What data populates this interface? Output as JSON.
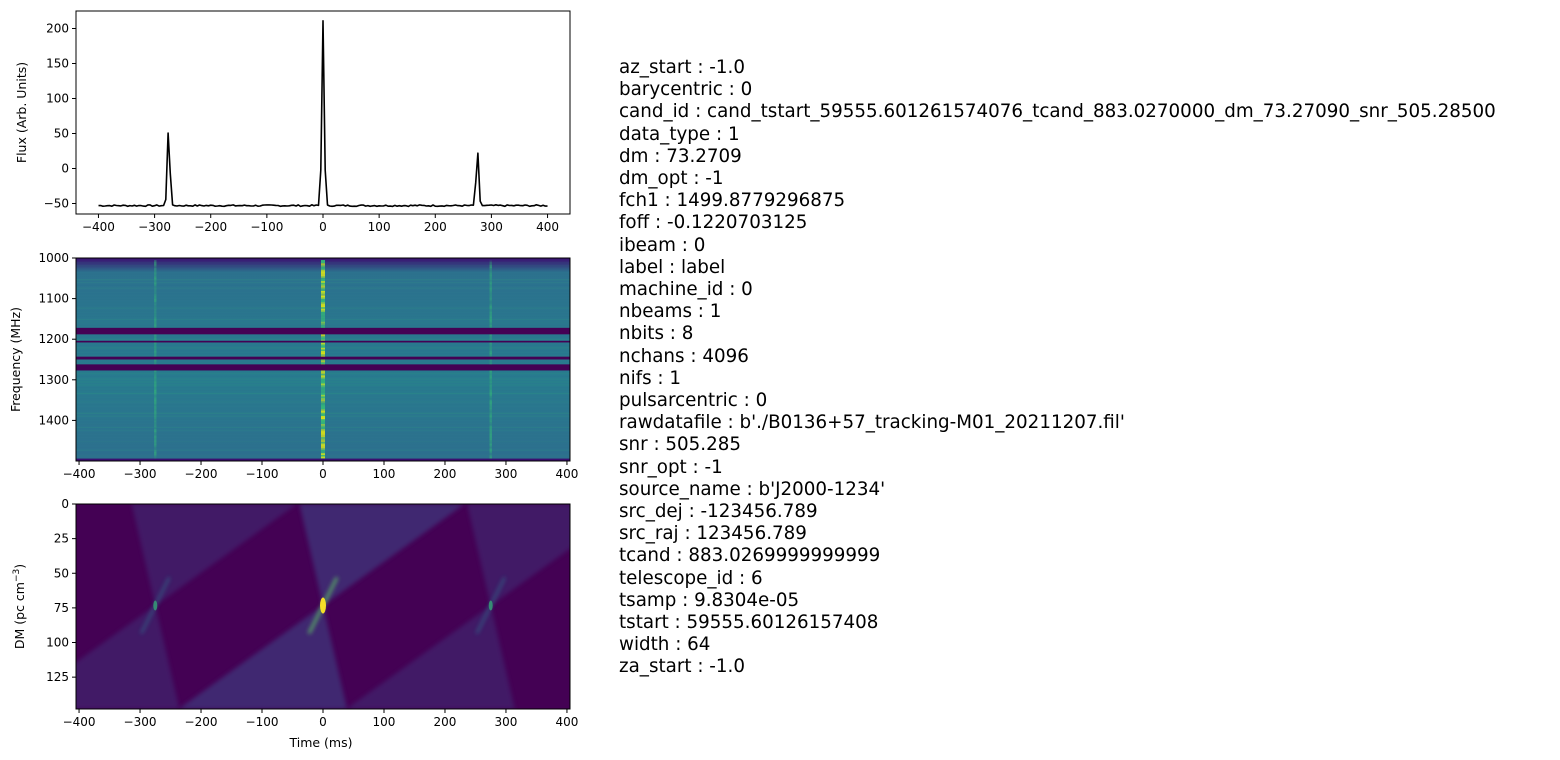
{
  "chart_data": [
    {
      "type": "line",
      "title": "",
      "xlabel": "",
      "ylabel": "Flux (Arb. Units)",
      "xlim": [
        -440,
        440
      ],
      "ylim": [
        -65,
        225
      ],
      "xticks": [
        -400,
        -300,
        -200,
        -100,
        0,
        100,
        200,
        300,
        400
      ],
      "xtick_labels": [
        "−400",
        "−300",
        "−200",
        "−100",
        "0",
        "100",
        "200",
        "300",
        "400"
      ],
      "yticks": [
        -50,
        0,
        50,
        100,
        150,
        200
      ],
      "ytick_labels": [
        "−50",
        "0",
        "50",
        "100",
        "150",
        "200"
      ],
      "color": "#000000",
      "baseline": -53,
      "peaks": [
        {
          "x": -275,
          "y": 62
        },
        {
          "x": 0,
          "y": 211
        },
        {
          "x": 275,
          "y": 30
        }
      ],
      "series": [
        {
          "values": []
        }
      ]
    },
    {
      "type": "heatmap",
      "title": "",
      "xlabel": "",
      "ylabel": "Frequency (MHz)",
      "xlim": [
        -405,
        405
      ],
      "ylim": [
        1500,
        1000
      ],
      "xticks": [
        -400,
        -300,
        -200,
        -100,
        0,
        100,
        200,
        300,
        400
      ],
      "xtick_labels": [
        "−400",
        "−300",
        "−200",
        "−100",
        "0",
        "100",
        "200",
        "300",
        "400"
      ],
      "yticks": [
        1000,
        1100,
        1200,
        1300,
        1400
      ],
      "ytick_labels": [
        "1000",
        "1100",
        "1200",
        "1300",
        "1400"
      ],
      "colormap": "viridis",
      "pulse_times": [
        -275,
        0,
        275
      ],
      "masked_bands_mhz": [
        [
          1172,
          1188
        ],
        [
          1204,
          1208
        ],
        [
          1243,
          1250
        ],
        [
          1262,
          1277
        ]
      ]
    },
    {
      "type": "heatmap",
      "title": "",
      "xlabel": "Time (ms)",
      "ylabel": "DM (pc cm",
      "ylabel_sup": "−3",
      "ylabel_end": ")",
      "xlim": [
        -405,
        405
      ],
      "ylim": [
        148,
        0
      ],
      "xticks": [
        -400,
        -300,
        -200,
        -100,
        0,
        100,
        200,
        300,
        400
      ],
      "xtick_labels": [
        "−400",
        "−300",
        "−200",
        "−100",
        "0",
        "100",
        "200",
        "300",
        "400"
      ],
      "yticks": [
        0,
        25,
        50,
        75,
        100,
        125
      ],
      "ytick_labels": [
        "0",
        "25",
        "50",
        "75",
        "100",
        "125"
      ],
      "colormap": "viridis",
      "pulse_times": [
        -275,
        0,
        275
      ],
      "dm_peak": 73.27
    }
  ],
  "parameters": [
    "az_start : -1.0",
    "barycentric : 0",
    "cand_id : cand_tstart_59555.601261574076_tcand_883.0270000_dm_73.27090_snr_505.28500",
    "data_type : 1",
    "dm : 73.2709",
    "dm_opt : -1",
    "fch1 : 1499.8779296875",
    "foff : -0.1220703125",
    "ibeam : 0",
    "label : label",
    "machine_id : 0",
    "nbeams : 1",
    "nbits : 8",
    "nchans : 4096",
    "nifs : 1",
    "pulsarcentric : 0",
    "rawdatafile : b'./B0136+57_tracking-M01_20211207.fil'",
    "snr : 505.285",
    "snr_opt : -1",
    "source_name : b'J2000-1234'",
    "src_dej : -123456.789",
    "src_raj : 123456.789",
    "tcand : 883.0269999999999",
    "telescope_id : 6",
    "tsamp : 9.8304e-05",
    "tstart : 59555.60126157408",
    "width : 64",
    "za_start : -1.0"
  ]
}
